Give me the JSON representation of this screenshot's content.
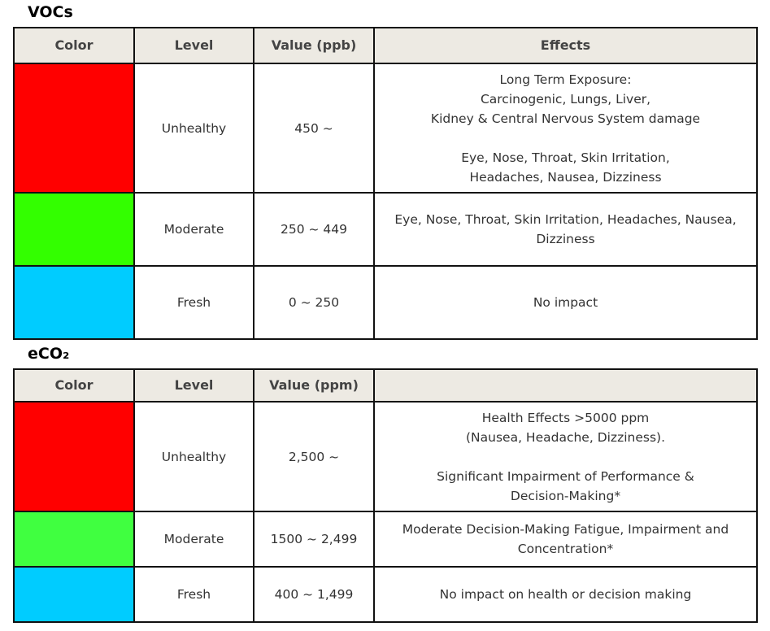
{
  "vocs": {
    "title": "VOCs",
    "headers": [
      "Color",
      "Level",
      "Value (ppb)",
      "Effects"
    ],
    "rows": [
      {
        "color": "#ff0000",
        "level": "Unhealthy",
        "value": "450 ~",
        "effects": [
          "Long Term Exposure:",
          "Carcinogenic, Lungs, Liver,",
          "Kidney & Central Nervous System damage",
          "",
          "Eye, Nose, Throat, Skin Irritation,",
          "Headaches, Nausea, Dizziness"
        ]
      },
      {
        "color": "#33ff00",
        "level": "Moderate",
        "value": "250 ~ 449",
        "effects": [
          "Eye, Nose, Throat, Skin Irritation, Headaches, Nausea,",
          "Dizziness"
        ]
      },
      {
        "color": "#00ccff",
        "level": "Fresh",
        "value": "0 ~ 250",
        "effects": [
          "No impact"
        ]
      }
    ]
  },
  "eco2": {
    "title": "eCO₂",
    "headers": [
      "Color",
      "Level",
      "Value (ppm)",
      ""
    ],
    "rows": [
      {
        "color": "#ff0000",
        "level": "Unhealthy",
        "value": "2,500 ~",
        "effects": [
          "Health Effects >5000 ppm",
          "(Nausea, Headache, Dizziness).",
          "",
          "Significant Impairment of Performance &",
          "Decision-Making*"
        ]
      },
      {
        "color": "#40ff40",
        "level": "Moderate",
        "value": "1500 ~ 2,499",
        "effects": [
          "Moderate Decision-Making Fatigue, Impairment  and",
          "Concentration*"
        ]
      },
      {
        "color": "#00ccff",
        "level": "Fresh",
        "value": "400 ~ 1,499",
        "effects": [
          "No impact on health or decision making"
        ]
      }
    ]
  }
}
